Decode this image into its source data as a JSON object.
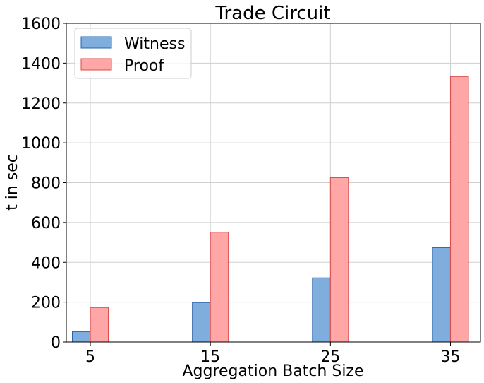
{
  "chart_data": {
    "type": "bar",
    "title": "Trade Circuit",
    "xlabel": "Aggregation Batch Size",
    "ylabel": "t in sec",
    "categories": [
      "5",
      "15",
      "25",
      "35"
    ],
    "x": [
      5,
      15,
      25,
      35
    ],
    "xlim": [
      3.0,
      37.5
    ],
    "ylim": [
      0,
      1600
    ],
    "yticks": [
      "0",
      "200",
      "400",
      "600",
      "800",
      "1000",
      "1200",
      "1400",
      "1600"
    ],
    "grid": true,
    "legend_position": "top-left",
    "series": [
      {
        "name": "Witness",
        "values": [
          52,
          198,
          322,
          474
        ],
        "color": "#7eadde",
        "edge": "#2a64a8"
      },
      {
        "name": "Proof",
        "values": [
          173,
          551,
          825,
          1333
        ],
        "color": "#ffa6a6",
        "edge": "#d94a4a"
      }
    ]
  }
}
